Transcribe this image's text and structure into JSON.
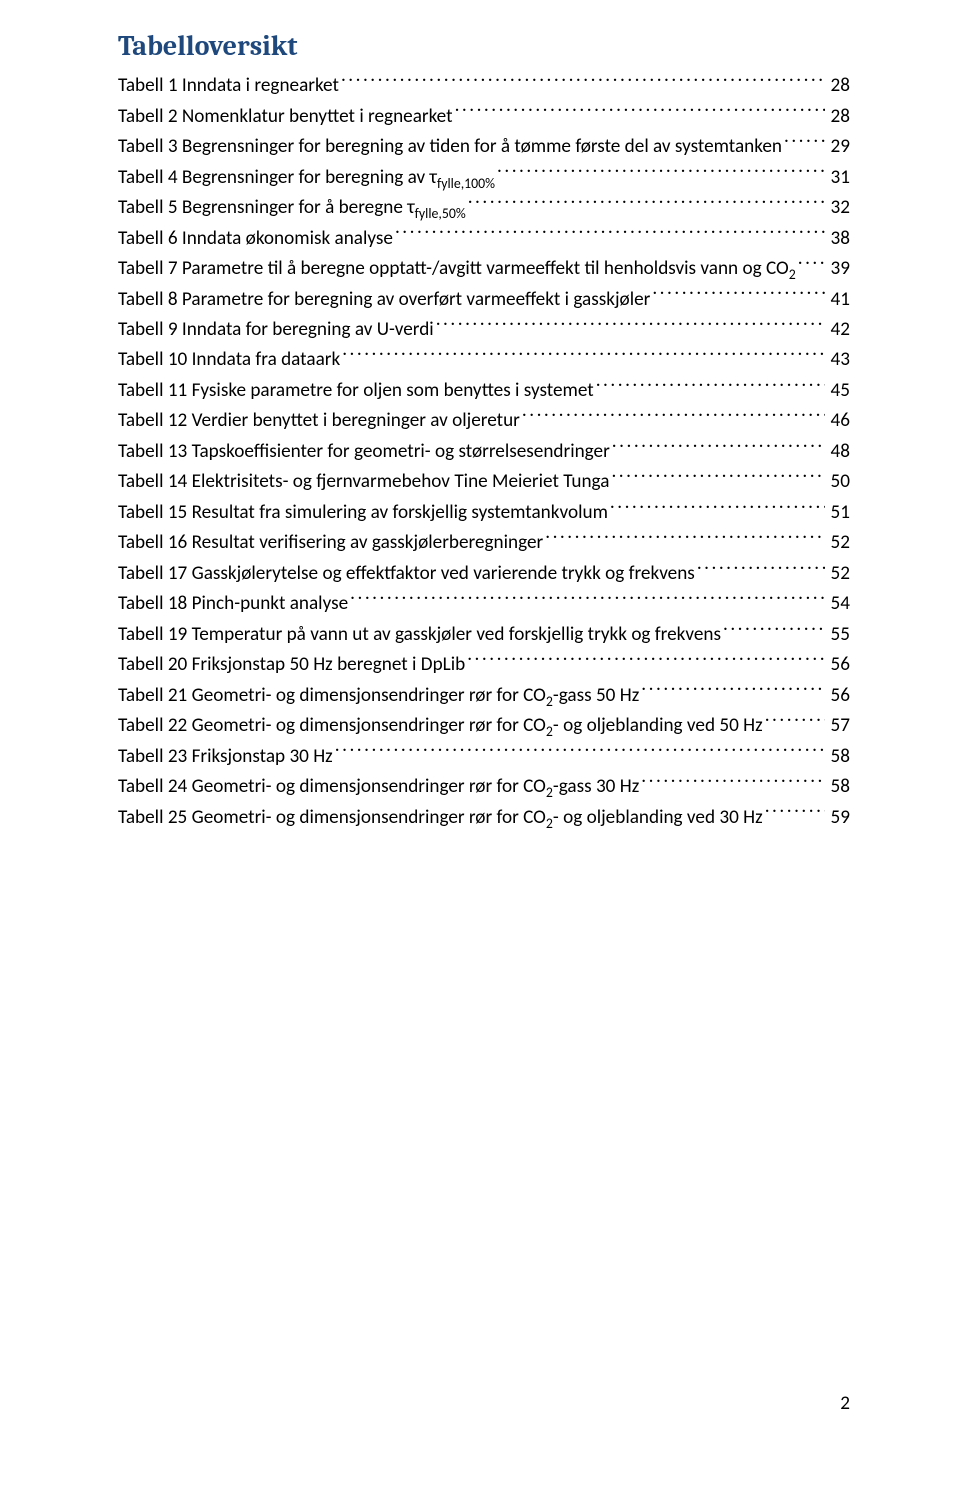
{
  "title": "Tabelloversikt",
  "page_number": "2",
  "entries": [
    {
      "label": "Tabell 1 Inndata i regnearket",
      "page": "28"
    },
    {
      "label": "Tabell 2 Nomenklatur benyttet i regnearket",
      "page": "28"
    },
    {
      "label": "Tabell 3 Begrensninger for beregning av tiden for å tømme første del av systemtanken",
      "page": "29"
    },
    {
      "label": "Tabell 4 Begrensninger for beregning av τ<sub>fylle,100%</sub>",
      "page": "31"
    },
    {
      "label": "Tabell 5 Begrensninger for å beregne τ<sub>fylle,50%</sub>",
      "page": "32"
    },
    {
      "label": "Tabell 6 Inndata økonomisk analyse",
      "page": "38"
    },
    {
      "label": "Tabell 7 Parametre til å beregne opptatt-/avgitt varmeeffekt til henholdsvis vann og CO<sub>2</sub>",
      "page": "39"
    },
    {
      "label": "Tabell 8 Parametre for beregning av overført varmeeffekt i gasskjøler",
      "page": "41"
    },
    {
      "label": "Tabell 9 Inndata for beregning av U-verdi",
      "page": "42"
    },
    {
      "label": "Tabell 10 Inndata fra dataark",
      "page": "43"
    },
    {
      "label": "Tabell 11 Fysiske parametre for oljen som benyttes i systemet",
      "page": "45"
    },
    {
      "label": "Tabell 12 Verdier benyttet i beregninger av oljeretur",
      "page": "46"
    },
    {
      "label": "Tabell 13 Tapskoeffisienter for geometri- og størrelsesendringer",
      "page": "48"
    },
    {
      "label": "Tabell 14 Elektrisitets- og fjernvarmebehov Tine Meieriet Tunga",
      "page": "50"
    },
    {
      "label": "Tabell 15 Resultat fra simulering av forskjellig systemtankvolum",
      "page": "51"
    },
    {
      "label": "Tabell 16 Resultat verifisering av gasskjølerberegninger",
      "page": "52"
    },
    {
      "label": "Tabell 17 Gasskjølerytelse og effektfaktor ved varierende trykk og frekvens",
      "page": "52"
    },
    {
      "label": "Tabell 18 Pinch-punkt analyse",
      "page": "54"
    },
    {
      "label": "Tabell 19 Temperatur på vann ut av gasskjøler ved forskjellig trykk og frekvens",
      "page": "55"
    },
    {
      "label": "Tabell 20 Friksjonstap 50 Hz beregnet i DpLib",
      "page": "56"
    },
    {
      "label": "Tabell 21 Geometri- og dimensjonsendringer rør for CO<sub>2</sub>-gass 50 Hz",
      "page": "56"
    },
    {
      "label": "Tabell 22 Geometri- og dimensjonsendringer rør for CO<sub>2</sub>- og oljeblanding ved 50 Hz",
      "page": "57"
    },
    {
      "label": "Tabell 23 Friksjonstap 30 Hz",
      "page": "58"
    },
    {
      "label": "Tabell 24 Geometri- og dimensjonsendringer rør for CO<sub>2</sub>-gass 30 Hz",
      "page": "58"
    },
    {
      "label": "Tabell 25 Geometri- og dimensjonsendringer rør for CO<sub>2</sub>- og oljeblanding ved 30 Hz",
      "page": "59"
    }
  ]
}
